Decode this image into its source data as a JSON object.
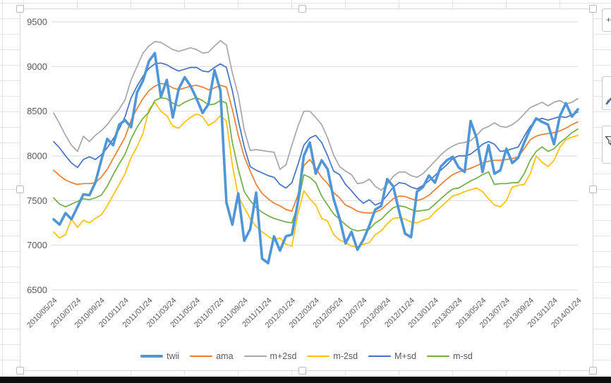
{
  "app": {
    "context": "spreadsheet worksheet with embedded selected line chart",
    "accent_colors": {
      "grid": "#d9d9d9",
      "axis_text": "#595959",
      "sheet_grid": "#e4e4e4"
    }
  },
  "chart_data": {
    "type": "line",
    "title": "",
    "grid": true,
    "legend_position": "bottom",
    "ylim": [
      6500,
      9500
    ],
    "y_step": 500,
    "y_tick_labels": [
      "9500",
      "9000",
      "8500",
      "8000",
      "7500",
      "7000",
      "6500"
    ],
    "samples_per_tick": 4,
    "x_tick_labels": [
      "2010/05/24",
      "2010/07/24",
      "2010/09/24",
      "2010/11/24",
      "2011/01/24",
      "2011/03/24",
      "2011/05/24",
      "2011/07/24",
      "2011/09/24",
      "2011/11/24",
      "2012/01/24",
      "2012/03/24",
      "2012/05/24",
      "2012/07/24",
      "2012/09/24",
      "2012/11/24",
      "2013/01/24",
      "2013/03/24",
      "2013/05/24",
      "2013/07/24",
      "2013/09/24",
      "2013/11/24",
      "2014/01/24"
    ],
    "series": [
      {
        "name": "twii",
        "color": "#4f96d8",
        "width": 3.6,
        "values": [
          7290,
          7230,
          7360,
          7290,
          7430,
          7570,
          7560,
          7700,
          7950,
          8190,
          8120,
          8350,
          8400,
          8320,
          8710,
          8840,
          9060,
          9150,
          8660,
          8850,
          8430,
          8750,
          8880,
          8780,
          8640,
          8480,
          8580,
          8960,
          8730,
          7480,
          7230,
          7580,
          7050,
          7180,
          7590,
          6850,
          6800,
          7100,
          6940,
          7100,
          7120,
          7480,
          8000,
          8150,
          7800,
          7950,
          7850,
          7520,
          7300,
          7020,
          7150,
          6950,
          7060,
          7220,
          7400,
          7440,
          7740,
          7660,
          7380,
          7130,
          7090,
          7600,
          7650,
          7780,
          7700,
          7880,
          7950,
          7990,
          7870,
          7820,
          8390,
          8200,
          7820,
          8120,
          7800,
          7840,
          8080,
          7920,
          7980,
          8150,
          8300,
          8420,
          8380,
          8350,
          8130,
          8450,
          8590,
          8440,
          8520
        ]
      },
      {
        "name": "ama",
        "color": "#ed7d31",
        "width": 1.7,
        "values": [
          7840,
          7780,
          7730,
          7700,
          7680,
          7690,
          7690,
          7700,
          7760,
          7850,
          7970,
          8090,
          8210,
          8400,
          8530,
          8640,
          8730,
          8780,
          8810,
          8800,
          8760,
          8740,
          8760,
          8780,
          8790,
          8770,
          8740,
          8760,
          8790,
          8770,
          8520,
          8230,
          7990,
          7830,
          7680,
          7580,
          7520,
          7470,
          7440,
          7400,
          7380,
          7560,
          7890,
          7960,
          7860,
          7760,
          7690,
          7590,
          7530,
          7450,
          7420,
          7380,
          7365,
          7360,
          7370,
          7400,
          7460,
          7520,
          7550,
          7545,
          7520,
          7500,
          7520,
          7560,
          7620,
          7680,
          7740,
          7790,
          7820,
          7840,
          7860,
          7890,
          7920,
          7940,
          7950,
          7950,
          7960,
          7970,
          7990,
          8080,
          8180,
          8220,
          8240,
          8250,
          8260,
          8280,
          8310,
          8350,
          8380
        ]
      },
      {
        "name": "m+2sd",
        "color": "#a6a6a6",
        "width": 1.7,
        "values": [
          8480,
          8360,
          8230,
          8120,
          8050,
          8220,
          8160,
          8230,
          8280,
          8350,
          8440,
          8520,
          8630,
          8850,
          9000,
          9150,
          9230,
          9280,
          9270,
          9230,
          9190,
          9170,
          9190,
          9210,
          9190,
          9150,
          9160,
          9230,
          9290,
          9240,
          8930,
          8680,
          8290,
          8060,
          8070,
          8060,
          8050,
          8040,
          7850,
          7900,
          8120,
          8330,
          8500,
          8500,
          8430,
          8350,
          8200,
          8010,
          7880,
          7830,
          7790,
          7690,
          7700,
          7740,
          7660,
          7615,
          7680,
          7770,
          7820,
          7820,
          7780,
          7760,
          7800,
          7870,
          7940,
          8010,
          8070,
          8110,
          8140,
          8150,
          8170,
          8230,
          8300,
          8330,
          8370,
          8330,
          8320,
          8350,
          8400,
          8470,
          8540,
          8570,
          8600,
          8560,
          8600,
          8620,
          8580,
          8600,
          8640
        ]
      },
      {
        "name": "m-2sd",
        "color": "#ffc000",
        "width": 1.7,
        "values": [
          7150,
          7080,
          7120,
          7290,
          7200,
          7280,
          7250,
          7300,
          7340,
          7440,
          7560,
          7680,
          7800,
          7980,
          8100,
          8250,
          8520,
          8600,
          8500,
          8450,
          8330,
          8310,
          8380,
          8430,
          8470,
          8440,
          8340,
          8380,
          8450,
          8390,
          7900,
          7550,
          7420,
          7300,
          7210,
          7150,
          7100,
          7060,
          7080,
          7010,
          6990,
          7350,
          7610,
          7520,
          7450,
          7300,
          7270,
          7120,
          7060,
          7030,
          6990,
          6980,
          7010,
          7030,
          7120,
          7160,
          7240,
          7300,
          7310,
          7290,
          7260,
          7250,
          7280,
          7300,
          7370,
          7430,
          7490,
          7550,
          7570,
          7600,
          7620,
          7640,
          7600,
          7520,
          7450,
          7430,
          7500,
          7650,
          7670,
          7680,
          7800,
          8000,
          7930,
          7880,
          7950,
          8100,
          8180,
          8210,
          8230
        ]
      },
      {
        "name": "M+sd",
        "color": "#4472c4",
        "width": 1.7,
        "values": [
          8160,
          8090,
          8000,
          7920,
          7870,
          7960,
          7990,
          7960,
          8010,
          8090,
          8190,
          8300,
          8440,
          8650,
          8780,
          8890,
          8980,
          9030,
          9040,
          9020,
          8980,
          8950,
          8970,
          8990,
          8990,
          8950,
          8940,
          8990,
          9030,
          8990,
          8730,
          8400,
          8100,
          7880,
          7840,
          7810,
          7780,
          7760,
          7680,
          7640,
          7700,
          7900,
          8120,
          8200,
          8230,
          8150,
          8000,
          7830,
          7790,
          7680,
          7610,
          7530,
          7470,
          7510,
          7450,
          7480,
          7560,
          7650,
          7700,
          7690,
          7650,
          7630,
          7670,
          7720,
          7780,
          7840,
          7900,
          7970,
          8000,
          8000,
          8020,
          8070,
          8130,
          8160,
          8130,
          8050,
          8060,
          8080,
          8100,
          8220,
          8330,
          8400,
          8420,
          8400,
          8420,
          8440,
          8430,
          8460,
          8490
        ]
      },
      {
        "name": "m-sd",
        "color": "#70ad47",
        "width": 1.7,
        "values": [
          7530,
          7460,
          7430,
          7460,
          7490,
          7520,
          7510,
          7530,
          7560,
          7660,
          7790,
          7910,
          8020,
          8190,
          8320,
          8420,
          8490,
          8620,
          8650,
          8640,
          8590,
          8560,
          8600,
          8630,
          8650,
          8620,
          8570,
          8580,
          8620,
          8590,
          8150,
          7850,
          7600,
          7500,
          7420,
          7370,
          7330,
          7300,
          7280,
          7260,
          7250,
          7450,
          7790,
          7760,
          7700,
          7550,
          7450,
          7350,
          7290,
          7230,
          7180,
          7160,
          7170,
          7180,
          7250,
          7290,
          7360,
          7420,
          7440,
          7430,
          7400,
          7380,
          7390,
          7400,
          7460,
          7520,
          7580,
          7630,
          7640,
          7680,
          7720,
          7750,
          7790,
          7820,
          7680,
          7690,
          7690,
          7700,
          7700,
          7800,
          7950,
          8050,
          8100,
          8050,
          8080,
          8150,
          8200,
          8260,
          8300
        ]
      }
    ]
  },
  "chart_buttons": {
    "elements_label": "chart elements",
    "styles_label": "chart styles",
    "filters_label": "chart filters"
  }
}
